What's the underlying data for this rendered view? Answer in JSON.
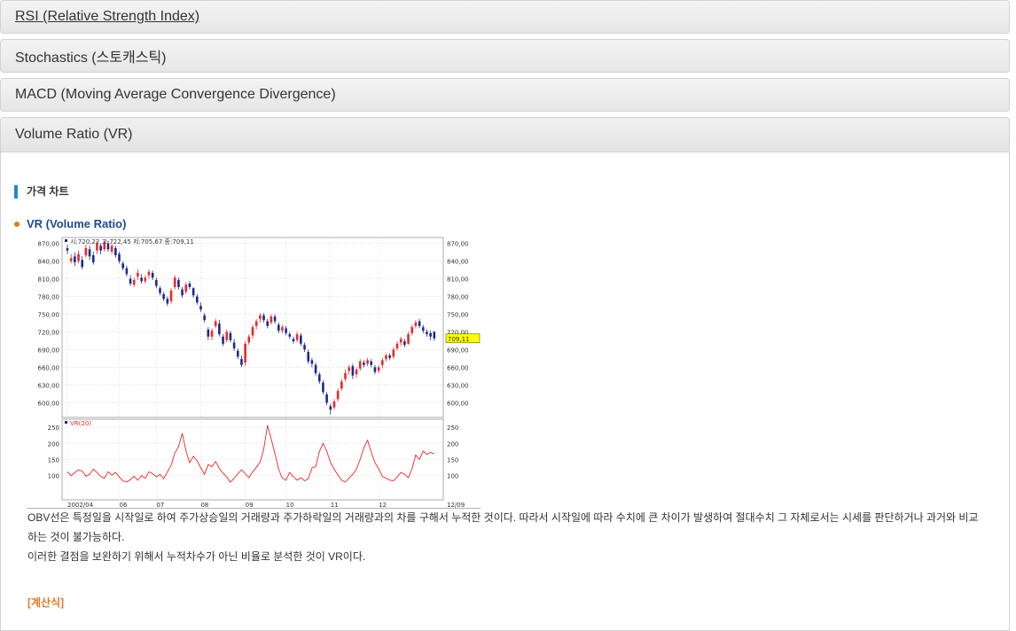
{
  "accordion": [
    {
      "label": "RSI (Relative Strength Index)",
      "underlined": true
    },
    {
      "label": "Stochastics (스토캐스틱)"
    },
    {
      "label": "MACD (Moving Average Convergence Divergence)"
    },
    {
      "label": "Volume Ratio (VR)",
      "active": true
    }
  ],
  "section": {
    "title": "가격 차트",
    "subtitle": "VR (Volume Ratio)",
    "description_line1": "OBV선은 특정일을 시작일로 하여 주가상승일의 거래량과 주가하락일의 거래량과의 차를 구해서 누적한 것이다. 따라서 시작일에 따라 수치에 큰 차이가 발생하여 절대수치 그 자체로서는 시세를 판단하거나 과거와 비교",
    "description_line2": "하는 것이 불가능하다.",
    "description_line3": "이러한 결점을 보완하기 위해서 누적차수가 아닌 비율로 분석한 것이 VR이다.",
    "calc_label": "[계산식]"
  },
  "colors": {
    "accent": "#1a8ad6",
    "bullet": "#e07a28",
    "subtitle": "#1d4a94",
    "up": "#e8282b",
    "down": "#1c2a8a",
    "vr_line": "#e8282b",
    "last_price_bg": "#ffff00"
  },
  "chart_data": {
    "type": "candlestick",
    "price_panel": {
      "legend": "시:720,22  고:722,45  저:705,67  종:709,11",
      "y_ticks": [
        870,
        840,
        810,
        780,
        750,
        720,
        690,
        660,
        630,
        600
      ],
      "y_tick_labels": [
        "870,00",
        "840,00",
        "810,00",
        "780,00",
        "750,00",
        "720,00",
        "690,00",
        "660,00",
        "630,00",
        "600,00"
      ],
      "ylim": [
        575,
        880
      ],
      "last_price": "709,11",
      "closes": [
        858,
        845,
        838,
        852,
        830,
        862,
        848,
        838,
        870,
        858,
        872,
        860,
        866,
        850,
        840,
        828,
        818,
        802,
        808,
        820,
        806,
        812,
        822,
        812,
        798,
        786,
        776,
        768,
        790,
        812,
        796,
        782,
        800,
        796,
        782,
        770,
        758,
        740,
        712,
        722,
        738,
        716,
        700,
        720,
        706,
        692,
        678,
        664,
        700,
        712,
        728,
        738,
        748,
        740,
        730,
        746,
        738,
        722,
        728,
        718,
        712,
        704,
        716,
        700,
        690,
        670,
        666,
        650,
        636,
        618,
        600,
        588,
        602,
        620,
        636,
        650,
        660,
        646,
        656,
        670,
        664,
        672,
        664,
        652,
        660,
        672,
        680,
        676,
        690,
        700,
        708,
        698,
        716,
        728,
        736,
        730,
        722,
        716,
        712,
        709
      ],
      "opens": [
        862,
        840,
        848,
        840,
        842,
        850,
        860,
        850,
        858,
        866,
        860,
        870,
        856,
        862,
        852,
        836,
        828,
        810,
        800,
        814,
        812,
        806,
        816,
        820,
        808,
        794,
        784,
        776,
        772,
        796,
        808,
        792,
        788,
        802,
        794,
        780,
        764,
        748,
        724,
        712,
        730,
        734,
        712,
        706,
        718,
        702,
        688,
        674,
        668,
        702,
        714,
        730,
        742,
        748,
        738,
        736,
        746,
        732,
        722,
        726,
        716,
        708,
        706,
        714,
        698,
        686,
        672,
        664,
        648,
        634,
        614,
        594,
        592,
        606,
        624,
        640,
        654,
        662,
        648,
        658,
        668,
        666,
        670,
        660,
        654,
        664,
        674,
        680,
        678,
        692,
        702,
        704,
        700,
        718,
        730,
        738,
        728,
        720,
        718,
        720
      ],
      "highs": [
        868,
        852,
        855,
        858,
        848,
        868,
        866,
        856,
        874,
        870,
        876,
        874,
        870,
        866,
        856,
        840,
        832,
        816,
        812,
        826,
        818,
        816,
        826,
        824,
        812,
        798,
        788,
        780,
        794,
        816,
        812,
        796,
        804,
        806,
        796,
        784,
        770,
        752,
        728,
        726,
        742,
        740,
        716,
        724,
        722,
        708,
        692,
        680,
        704,
        716,
        732,
        742,
        752,
        752,
        742,
        750,
        750,
        736,
        732,
        730,
        720,
        712,
        720,
        718,
        702,
        690,
        676,
        668,
        652,
        638,
        618,
        598,
        606,
        624,
        640,
        656,
        664,
        666,
        660,
        674,
        672,
        676,
        674,
        664,
        664,
        676,
        684,
        684,
        694,
        704,
        712,
        708,
        720,
        732,
        740,
        742,
        732,
        724,
        722,
        722
      ],
      "lows": [
        852,
        836,
        832,
        836,
        826,
        846,
        842,
        834,
        852,
        852,
        856,
        856,
        852,
        846,
        836,
        824,
        814,
        798,
        796,
        808,
        802,
        802,
        810,
        808,
        794,
        782,
        772,
        764,
        768,
        792,
        792,
        778,
        784,
        792,
        778,
        766,
        754,
        736,
        706,
        706,
        726,
        712,
        696,
        702,
        702,
        688,
        674,
        660,
        662,
        698,
        708,
        724,
        736,
        736,
        726,
        732,
        734,
        718,
        718,
        714,
        708,
        700,
        702,
        696,
        686,
        666,
        660,
        646,
        632,
        614,
        596,
        580,
        588,
        602,
        620,
        636,
        648,
        640,
        642,
        654,
        660,
        662,
        660,
        648,
        650,
        658,
        670,
        672,
        674,
        688,
        696,
        694,
        698,
        714,
        726,
        726,
        718,
        712,
        706,
        705
      ]
    },
    "vr_panel": {
      "legend": "VR(20)",
      "y_ticks": [
        250,
        200,
        150,
        100
      ],
      "ylim": [
        25,
        275
      ],
      "values": [
        112,
        100,
        110,
        118,
        114,
        98,
        104,
        120,
        110,
        98,
        92,
        112,
        102,
        110,
        96,
        84,
        80,
        88,
        98,
        86,
        100,
        92,
        112,
        106,
        96,
        104,
        90,
        112,
        132,
        170,
        190,
        232,
        176,
        140,
        160,
        146,
        124,
        104,
        134,
        128,
        144,
        122,
        108,
        96,
        80,
        92,
        106,
        118,
        106,
        94,
        112,
        126,
        142,
        182,
        256,
        214,
        168,
        120,
        92,
        86,
        110,
        96,
        86,
        94,
        84,
        90,
        124,
        128,
        174,
        200,
        176,
        140,
        120,
        102,
        86,
        80,
        92,
        104,
        120,
        150,
        186,
        210,
        172,
        140,
        122,
        98,
        92,
        86,
        84,
        96,
        110,
        104,
        94,
        120,
        164,
        150,
        176,
        166,
        172,
        168
      ]
    },
    "x_tick_labels": [
      "2002/04",
      "06",
      "07",
      "08",
      "09",
      "10",
      "11",
      "12",
      "12/09"
    ],
    "x_tick_index": [
      0,
      14,
      24,
      36,
      48,
      59,
      71,
      84,
      100
    ]
  }
}
